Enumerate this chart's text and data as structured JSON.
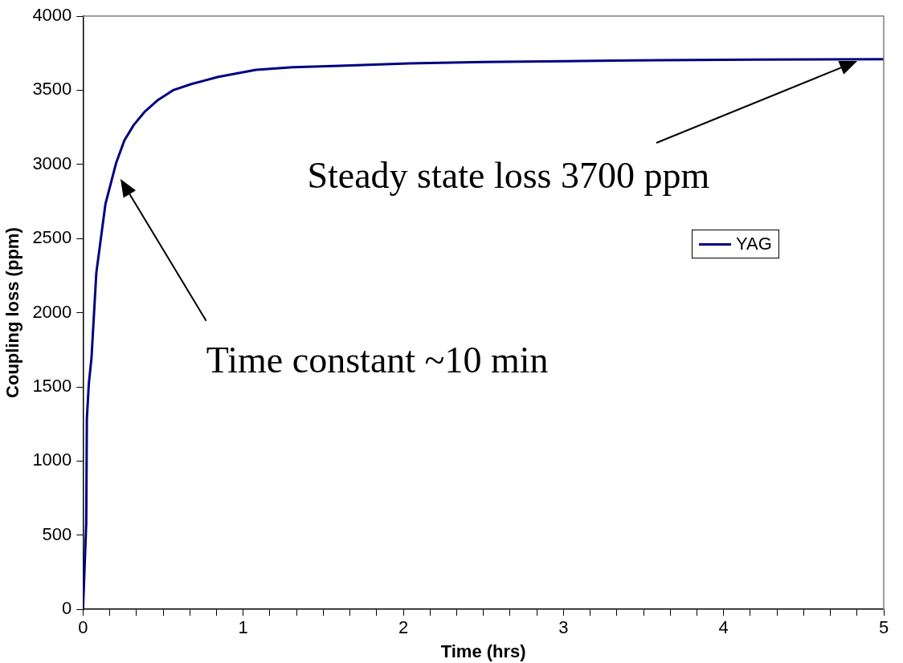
{
  "chart_data": {
    "type": "line",
    "xlabel": "Time (hrs)",
    "ylabel": "Coupling loss (ppm)",
    "xlim": [
      0,
      5
    ],
    "xticks": [
      0,
      {
        "value": 0.1667,
        "label": null
      },
      {
        "value": 0.3333,
        "label": null
      },
      {
        "value": 0.5,
        "label": null
      },
      {
        "value": 0.6667,
        "label": null
      },
      {
        "value": 0.8333,
        "label": null
      },
      1,
      {
        "value": 1.1667,
        "label": null
      },
      {
        "value": 1.3333,
        "label": null
      },
      {
        "value": 1.5,
        "label": null
      },
      {
        "value": 1.6667,
        "label": null
      },
      {
        "value": 1.8333,
        "label": null
      },
      2,
      {
        "value": 2.1667,
        "label": null
      },
      {
        "value": 2.3333,
        "label": null
      },
      {
        "value": 2.5,
        "label": null
      },
      {
        "value": 2.6667,
        "label": null
      },
      {
        "value": 2.8333,
        "label": null
      },
      3,
      {
        "value": 3.1667,
        "label": null
      },
      {
        "value": 3.3333,
        "label": null
      },
      {
        "value": 3.5,
        "label": null
      },
      {
        "value": 3.6667,
        "label": null
      },
      {
        "value": 3.8333,
        "label": null
      },
      4,
      {
        "value": 4.1667,
        "label": null
      },
      {
        "value": 4.3333,
        "label": null
      },
      {
        "value": 4.5,
        "label": null
      },
      {
        "value": 4.6667,
        "label": null
      },
      {
        "value": 4.8333,
        "label": null
      },
      5
    ],
    "ylim": [
      0,
      4000
    ],
    "yticks": [
      0,
      500,
      1000,
      1500,
      2000,
      2500,
      3000,
      3500,
      4000
    ],
    "grid": false,
    "legend": "right",
    "marker": "none",
    "line_style": "solid",
    "series": [
      {
        "name": "YAG",
        "color": "#000080",
        "x": [
          0,
          0.02,
          0.024,
          0.036,
          0.053,
          0.083,
          0.14,
          0.206,
          0.258,
          0.317,
          0.387,
          0.469,
          0.562,
          0.68,
          0.845,
          1.08,
          1.31,
          1.6,
          2,
          2.5,
          3,
          3.6,
          4.2,
          5
        ],
        "values": [
          0,
          582,
          1284,
          1518,
          1697,
          2268,
          2733,
          3007,
          3161,
          3266,
          3357,
          3435,
          3500,
          3543,
          3590,
          3637,
          3655,
          3665,
          3680,
          3690,
          3695,
          3703,
          3706,
          3709
        ]
      }
    ],
    "annotations": [
      "Time constant ~10 min",
      "Steady state loss 3700 ppm"
    ]
  }
}
